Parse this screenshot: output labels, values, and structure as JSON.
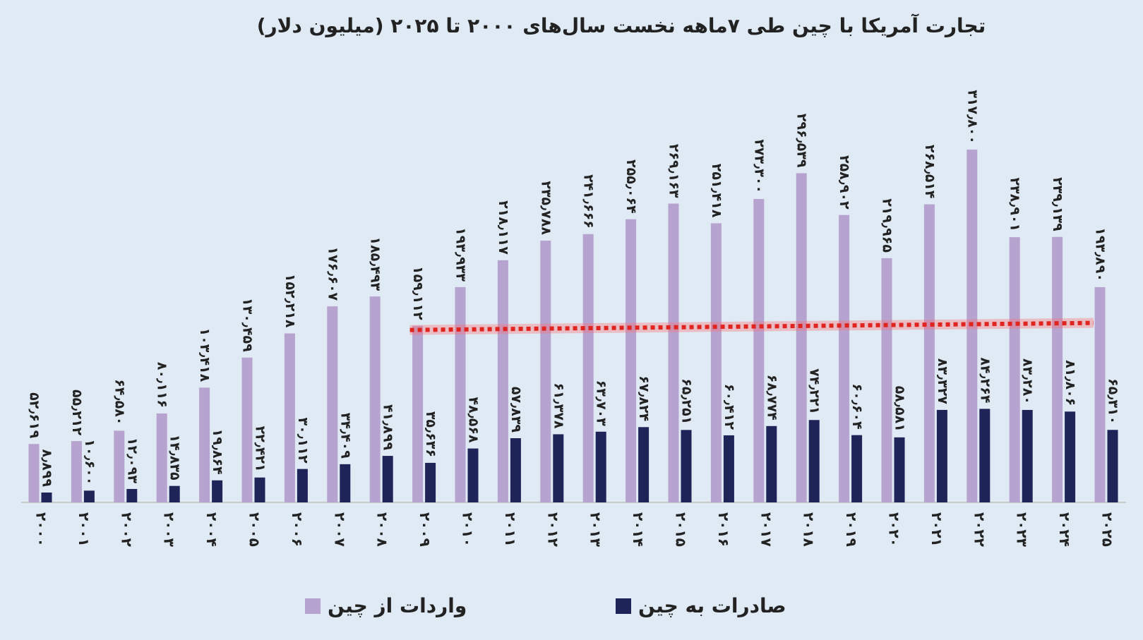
{
  "chart_data": {
    "type": "bar",
    "title": "تجارت آمریکا با چین طی ۷ماهه نخست سال‌های ۲۰۰۰ تا ۲۰۲۵ (میلیون دلار)",
    "categories": [
      "۲۰۰۰",
      "۲۰۰۱",
      "۲۰۰۲",
      "۲۰۰۳",
      "۲۰۰۴",
      "۲۰۰۵",
      "۲۰۰۶",
      "۲۰۰۷",
      "۲۰۰۸",
      "۲۰۰۹",
      "۲۰۱۰",
      "۲۰۱۱",
      "۲۰۱۲",
      "۲۰۱۳",
      "۲۰۱۴",
      "۲۰۱۵",
      "۲۰۱۶",
      "۲۰۱۷",
      "۲۰۱۸",
      "۲۰۱۹",
      "۲۰۲۰",
      "۲۰۲۱",
      "۲۰۲۲",
      "۲۰۲۳",
      "۲۰۲۴",
      "۲۰۲۵"
    ],
    "series": [
      {
        "name": "واردات از چین",
        "color": "#b7a3cf",
        "values": [
          52619,
          55212,
          64580,
          80116,
          103418,
          130459,
          152218,
          176607,
          185493,
          159112,
          193933,
          218117,
          235788,
          241666,
          255064,
          269163,
          251418,
          273300,
          296539,
          258902,
          219965,
          268514,
          317800,
          238901,
          239139,
          193890
        ],
        "value_labels": [
          "۵۲٫۶۱۹",
          "۵۵٫۲۱۲",
          "۶۴٫۵۸۰",
          "۸۰٫۱۱۶",
          "۱۰۳٫۴۱۸",
          "۱۳۰٫۴۵۹",
          "۱۵۲٫۲۱۸",
          "۱۷۶٫۶۰۷",
          "۱۸۵٫۴۹۳",
          "۱۵۹٫۱۱۲",
          "۱۹۳٫۹۳۳",
          "۲۱۸٫۱۱۷",
          "۲۳۵٫۷۸۸",
          "۲۴۱٫۶۶۶",
          "۲۵۵٫۰۶۴",
          "۲۶۹٫۱۶۳",
          "۲۵۱٫۴۱۸",
          "۲۷۳٫۳۰۰",
          "۲۹۶٫۵۳۹",
          "۲۵۸٫۹۰۲",
          "۲۱۹٫۹۶۵",
          "۲۶۸٫۵۱۴",
          "۳۱۷٫۸۰۰",
          "۲۳۸٫۹۰۱",
          "۲۳۹٫۱۳۹",
          "۱۹۳٫۸۹۰"
        ]
      },
      {
        "name": "صادرات به چین",
        "color": "#1e2358",
        "values": [
          8899,
          10600,
          12093,
          14835,
          19864,
          22421,
          30112,
          34409,
          41899,
          35636,
          48568,
          57839,
          61378,
          63703,
          67824,
          65251,
          60412,
          68774,
          74221,
          60604,
          58581,
          83327,
          84264,
          83280,
          81806,
          65310
        ],
        "value_labels": [
          "۸٫۸۹۹",
          "۱۰٫۶۰۰",
          "۱۲٫۰۹۳",
          "۱۴٫۸۳۵",
          "۱۹٫۸۶۴",
          "۲۲٫۴۲۱",
          "۳۰٫۱۱۲",
          "۳۴٫۴۰۹",
          "۴۱٫۸۹۹",
          "۳۵٫۶۳۶",
          "۴۸٫۵۶۸",
          "۵۷٫۸۳۹",
          "۶۱٫۳۷۸",
          "۶۳٫۷۰۳",
          "۶۷٫۸۲۴",
          "۶۵٫۲۵۱",
          "۶۰٫۴۱۲",
          "۶۸٫۷۷۴",
          "۷۴٫۲۲۱",
          "۶۰٫۶۰۴",
          "۵۸٫۵۸۱",
          "۸۳٫۳۲۷",
          "۸۴٫۲۶۴",
          "۸۳٫۲۸۰",
          "۸۱٫۸۰۶",
          "۶۵٫۳۱۰"
        ]
      }
    ]
  }
}
